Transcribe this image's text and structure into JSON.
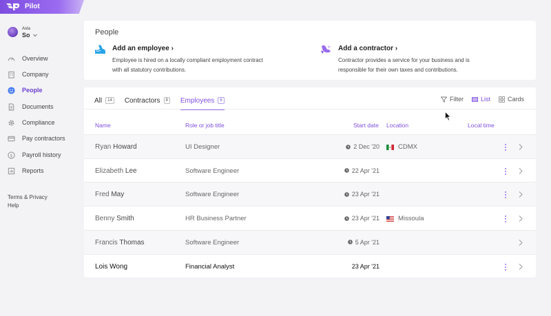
{
  "brand": {
    "name": "Pilot",
    "color": "#7d4ee0"
  },
  "user": {
    "org": "Asta",
    "name": "So"
  },
  "nav": [
    {
      "label": "Overview",
      "icon": "gauge-icon",
      "active": false
    },
    {
      "label": "Company",
      "icon": "building-icon",
      "active": false
    },
    {
      "label": "People",
      "icon": "smile-icon",
      "active": true
    },
    {
      "label": "Documents",
      "icon": "document-icon",
      "active": false
    },
    {
      "label": "Compliance",
      "icon": "gear-icon",
      "active": false
    },
    {
      "label": "Pay contractors",
      "icon": "card-icon",
      "active": false
    },
    {
      "label": "Payroll history",
      "icon": "dollar-icon",
      "active": false
    },
    {
      "label": "Reports",
      "icon": "reports-icon",
      "active": false
    }
  ],
  "footer": {
    "terms": "Terms & Privacy",
    "help": "Help"
  },
  "page": {
    "title": "People",
    "add_employee": {
      "title": "Add an employee",
      "description": "Employee is hired on a locally compliant employment contract with all statutory contributions."
    },
    "add_contractor": {
      "title": "Add a contractor",
      "description": "Contractor provides a service for your business and is responsible for their own taxes and contributions."
    }
  },
  "tabs": [
    {
      "label": "All",
      "count": "14",
      "active": false
    },
    {
      "label": "Contractors",
      "count": "8",
      "active": false
    },
    {
      "label": "Employees",
      "count": "6",
      "active": true
    }
  ],
  "toolbar": {
    "filter": "Filter",
    "list": "List",
    "cards": "Cards"
  },
  "columns": {
    "name": "Name",
    "role": "Role or job title",
    "start": "Start date",
    "location": "Location",
    "local_time": "Local time"
  },
  "rows": [
    {
      "first": "Ryan",
      "last": "Howard",
      "role": "UI Designer",
      "start": "2 Dec '20",
      "pending": true,
      "location": "CDMX",
      "flag": "mx",
      "menu": true
    },
    {
      "first": "Elizabeth",
      "last": "Lee",
      "role": "Software Engineer",
      "start": "22 Apr '21",
      "pending": true,
      "location": "",
      "flag": "",
      "menu": true
    },
    {
      "first": "Fred",
      "last": "May",
      "role": "Software Engineer",
      "start": "23 Apr '21",
      "pending": true,
      "location": "",
      "flag": "",
      "menu": true
    },
    {
      "first": "Benny",
      "last": "Smith",
      "role": "HR Business Partner",
      "start": "23 Apr '21",
      "pending": true,
      "location": "Missoula",
      "flag": "us",
      "menu": true
    },
    {
      "first": "Francis",
      "last": "Thomas",
      "role": "Software Engineer",
      "start": "5 Apr '21",
      "pending": true,
      "location": "",
      "flag": "",
      "menu": false
    },
    {
      "first": "Lois",
      "last": "Wong",
      "role": "Financial Analyst",
      "start": "23 Apr '21",
      "pending": false,
      "location": "",
      "flag": "",
      "menu": true
    }
  ]
}
